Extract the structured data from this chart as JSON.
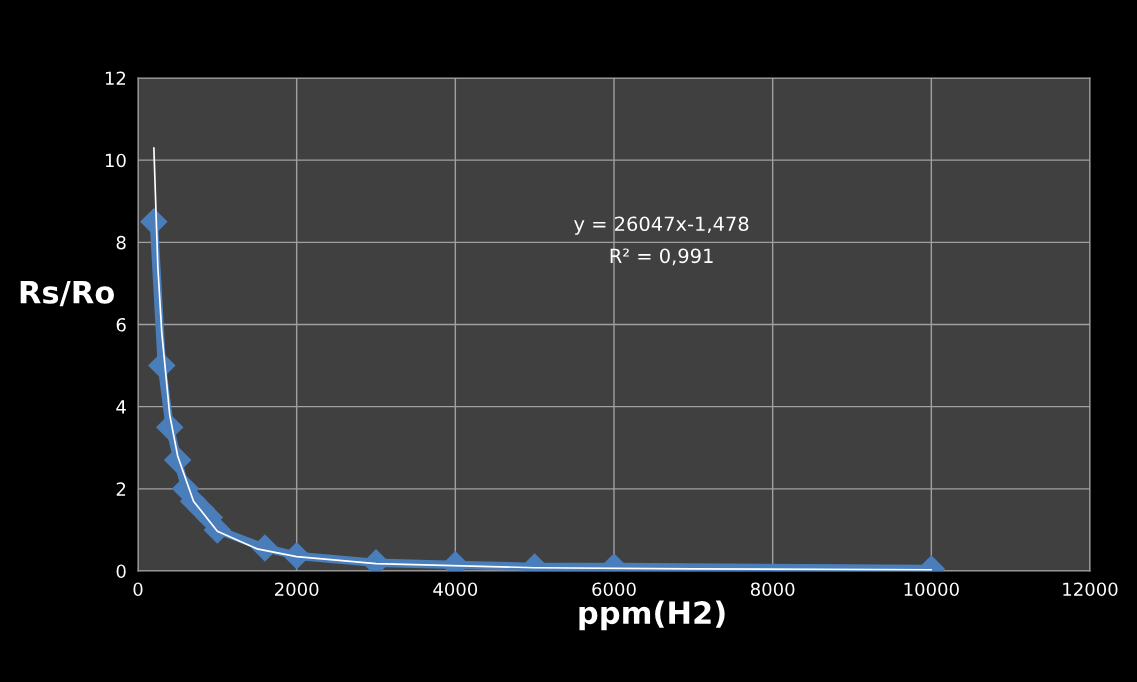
{
  "chart_data": {
    "type": "line",
    "xlabel": "ppm(H2)",
    "ylabel": "Rs/Ro",
    "annotations": [
      "y = 26047x-1,478",
      "R² = 0,991"
    ],
    "series": [
      {
        "color": "#4a7ebb",
        "marker": "diamond",
        "x": [
          200,
          300,
          400,
          500,
          600,
          700,
          800,
          900,
          1000,
          1600,
          2000,
          3000,
          4000,
          5000,
          6000,
          10000
        ],
        "values": [
          8.5,
          5.0,
          3.5,
          2.7,
          2.0,
          1.7,
          1.5,
          1.3,
          1.0,
          0.56,
          0.37,
          0.2,
          0.15,
          0.1,
          0.1,
          0.05
        ]
      },
      {
        "color": "#ffffff",
        "marker": "none",
        "x": [
          200,
          250,
          300,
          400,
          500,
          700,
          1000,
          1500,
          2000,
          3000,
          5000,
          7000,
          10000
        ],
        "values": [
          10.3,
          7.4,
          5.8,
          3.8,
          2.8,
          1.7,
          0.97,
          0.54,
          0.35,
          0.18,
          0.08,
          0.05,
          0.03
        ]
      }
    ],
    "xlim": [
      0,
      12000
    ],
    "xticks": [
      0,
      2000,
      4000,
      6000,
      8000,
      10000,
      12000
    ],
    "ylim": [
      0,
      12
    ],
    "yticks": [
      0,
      2,
      4,
      6,
      8,
      10,
      12
    ],
    "grid": true
  }
}
